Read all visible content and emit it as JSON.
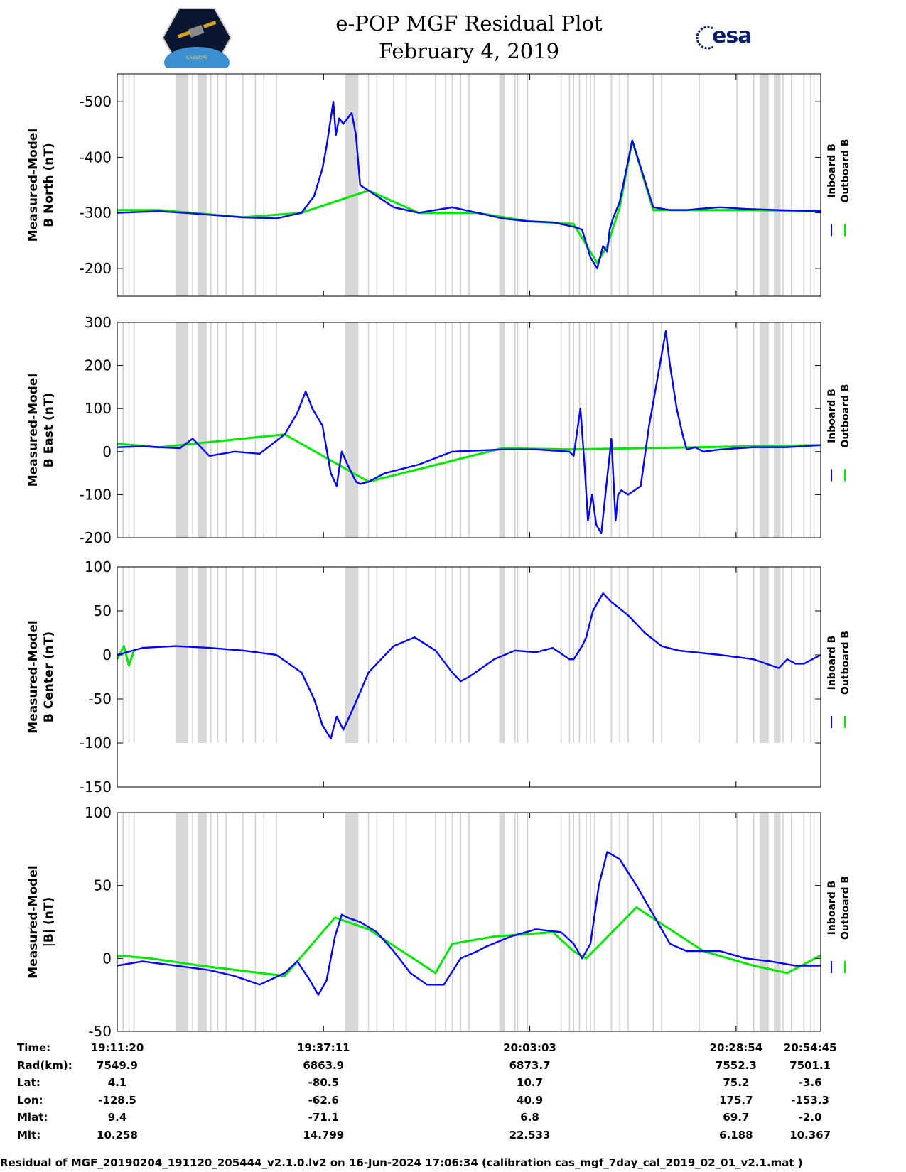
{
  "title_line1": "e-POP MGF Residual Plot",
  "title_line2": "February 4, 2019",
  "logos": {
    "esa": "esa",
    "cassiope": "CASSIOPE"
  },
  "colors": {
    "inboard": "#0000ff",
    "outboard": "#00e600",
    "gap": "#d8d8d8"
  },
  "chart_data": [
    {
      "type": "line",
      "ylabel": [
        "Measured-Model",
        "B North (nT)"
      ],
      "ylim": [
        -550,
        -150
      ],
      "yreversed": true,
      "yticks": [
        -200,
        -300,
        -400,
        -500
      ],
      "legend": [
        "Inboard B",
        "Outboard B"
      ],
      "series": [
        {
          "name": "Inboard B",
          "x": [
            0,
            50,
            80,
            150,
            190,
            220,
            235,
            245,
            250,
            255,
            258,
            261,
            265,
            270,
            275,
            280,
            285,
            290,
            300,
            330,
            360,
            380,
            400,
            430,
            460,
            490,
            520,
            545,
            555,
            565,
            573,
            580,
            585,
            588,
            592,
            600,
            615,
            640,
            660,
            680,
            700,
            720,
            750,
            790,
            840
          ],
          "y": [
            -300,
            -303,
            -300,
            -292,
            -290,
            -300,
            -330,
            -380,
            -420,
            -470,
            -500,
            -440,
            -470,
            -460,
            -470,
            -480,
            -440,
            -350,
            -340,
            -310,
            -300,
            -305,
            -310,
            -300,
            -290,
            -285,
            -283,
            -275,
            -270,
            -220,
            -200,
            -240,
            -230,
            -270,
            -290,
            -320,
            -430,
            -310,
            -305,
            -305,
            -308,
            -310,
            -307,
            -305,
            -303
          ]
        },
        {
          "name": "Outboard B",
          "x": [
            0,
            50,
            150,
            220,
            300,
            360,
            430,
            490,
            545,
            565,
            573,
            585,
            600,
            615,
            640,
            700,
            750,
            840
          ],
          "y": [
            -305,
            -305,
            -292,
            -300,
            -340,
            -300,
            -300,
            -285,
            -280,
            -230,
            -210,
            -240,
            -310,
            -430,
            -305,
            -305,
            -305,
            -303
          ]
        }
      ]
    },
    {
      "type": "line",
      "ylabel": [
        "Measured-Model",
        "B East (nT)"
      ],
      "ylim": [
        -200,
        300
      ],
      "yreversed": false,
      "yticks": [
        300,
        200,
        100,
        0,
        -100,
        -200
      ],
      "legend": [
        "Inboard B",
        "Outboard B"
      ],
      "series": [
        {
          "name": "Inboard B",
          "x": [
            0,
            30,
            75,
            90,
            110,
            140,
            170,
            200,
            215,
            225,
            233,
            245,
            255,
            262,
            268,
            275,
            280,
            285,
            290,
            300,
            320,
            360,
            400,
            460,
            500,
            540,
            545,
            553,
            558,
            562,
            567,
            572,
            578,
            585,
            590,
            595,
            598,
            602,
            610,
            625,
            635,
            645,
            655,
            660,
            668,
            675,
            680,
            690,
            700,
            720,
            760,
            800,
            840
          ],
          "y": [
            10,
            12,
            8,
            30,
            -10,
            0,
            -5,
            40,
            90,
            140,
            100,
            60,
            -50,
            -80,
            0,
            -30,
            -50,
            -70,
            -75,
            -70,
            -50,
            -30,
            0,
            5,
            5,
            0,
            -10,
            100,
            -30,
            -160,
            -100,
            -170,
            -190,
            -60,
            30,
            -160,
            -100,
            -90,
            -100,
            -80,
            60,
            170,
            280,
            200,
            100,
            40,
            5,
            10,
            0,
            5,
            10,
            10,
            15
          ]
        },
        {
          "name": "Outboard B",
          "x": [
            0,
            20,
            50,
            200,
            300,
            460,
            540,
            840
          ],
          "y": [
            18,
            15,
            10,
            40,
            -70,
            8,
            5,
            15
          ]
        }
      ]
    },
    {
      "type": "line",
      "ylabel": [
        "Measured-Model",
        "B Center (nT)"
      ],
      "ylim": [
        -150,
        100
      ],
      "yreversed": false,
      "yticks": [
        100,
        50,
        0,
        -50,
        -100,
        -150
      ],
      "legend": [
        "Inboard B",
        "Outboard B"
      ],
      "series": [
        {
          "name": "Inboard B",
          "x": [
            0,
            30,
            70,
            110,
            150,
            190,
            220,
            235,
            245,
            255,
            262,
            270,
            282,
            300,
            330,
            355,
            380,
            400,
            410,
            420,
            435,
            450,
            475,
            500,
            520,
            540,
            545,
            555,
            560,
            568,
            580,
            590,
            610,
            630,
            650,
            670,
            690,
            720,
            760,
            790,
            800,
            810,
            820,
            840
          ],
          "y": [
            0,
            8,
            10,
            8,
            5,
            0,
            -20,
            -50,
            -80,
            -95,
            -70,
            -85,
            -60,
            -20,
            10,
            20,
            5,
            -20,
            -30,
            -25,
            -15,
            -5,
            5,
            3,
            8,
            -5,
            -5,
            10,
            20,
            50,
            70,
            60,
            45,
            25,
            10,
            5,
            3,
            0,
            -5,
            -15,
            -5,
            -10,
            -10,
            0
          ]
        },
        {
          "name": "Outboard B",
          "x": [
            0,
            8,
            14,
            20
          ],
          "y": [
            -5,
            10,
            -12,
            5
          ]
        }
      ]
    },
    {
      "type": "line",
      "ylabel": [
        "Measured-Model",
        "|B| (nT)"
      ],
      "ylim": [
        -50,
        100
      ],
      "yreversed": false,
      "yticks": [
        100,
        50,
        0,
        -50
      ],
      "legend": [
        "Inboard B",
        "Outboard B"
      ],
      "series": [
        {
          "name": "Inboard B",
          "x": [
            0,
            30,
            70,
            110,
            140,
            170,
            200,
            215,
            230,
            240,
            250,
            260,
            268,
            275,
            290,
            310,
            330,
            350,
            370,
            390,
            410,
            430,
            440,
            470,
            500,
            530,
            545,
            555,
            565,
            575,
            585,
            600,
            620,
            640,
            660,
            680,
            700,
            720,
            750,
            780,
            810,
            840
          ],
          "y": [
            -5,
            -2,
            -5,
            -8,
            -12,
            -18,
            -10,
            -2,
            -15,
            -25,
            -15,
            15,
            30,
            28,
            25,
            18,
            5,
            -10,
            -18,
            -18,
            0,
            5,
            8,
            15,
            20,
            18,
            10,
            0,
            10,
            50,
            73,
            68,
            50,
            30,
            10,
            5,
            5,
            5,
            0,
            -2,
            -5,
            -5
          ]
        },
        {
          "name": "Outboard B",
          "x": [
            0,
            40,
            100,
            200,
            260,
            300,
            380,
            400,
            450,
            520,
            545,
            560,
            620,
            700,
            760,
            800,
            840
          ],
          "y": [
            2,
            0,
            -5,
            -12,
            28,
            20,
            -10,
            10,
            15,
            18,
            5,
            0,
            35,
            5,
            -5,
            -10,
            2
          ]
        }
      ]
    }
  ],
  "gap_bands": [
    [
      70,
      85
    ],
    [
      96,
      107
    ],
    [
      272,
      288
    ],
    [
      456,
      462
    ],
    [
      767,
      778
    ],
    [
      784,
      792
    ]
  ],
  "gap_lines": [
    7,
    14,
    20,
    90,
    112,
    120,
    130,
    150,
    165,
    175,
    190,
    300,
    310,
    330,
    345,
    380,
    392,
    400,
    410,
    420,
    462,
    475,
    478,
    490,
    530,
    540,
    545,
    552,
    560,
    565,
    570,
    590,
    600,
    610,
    640,
    650,
    695,
    740,
    760,
    795,
    805,
    820,
    828,
    832
  ],
  "xticks": [
    "19:11:20",
    "19:37:11",
    "20:03:03",
    "20:28:54",
    "20:54:45"
  ],
  "footer": {
    "labels": [
      "Time:",
      "Rad(km):",
      "Lat:",
      "Lon:",
      "Mlat:",
      "Mlt:"
    ],
    "columns": [
      [
        "19:11:20",
        "7549.9",
        "4.1",
        "-128.5",
        "9.4",
        "10.258"
      ],
      [
        "19:37:11",
        "6863.9",
        "-80.5",
        "-62.6",
        "-71.1",
        "14.799"
      ],
      [
        "20:03:03",
        "6873.7",
        "10.7",
        "40.9",
        "6.8",
        "22.533"
      ],
      [
        "20:28:54",
        "7552.3",
        "75.2",
        "175.7",
        "69.7",
        "6.188"
      ],
      [
        "20:54:45",
        "7501.1",
        "-3.6",
        "-153.3",
        "-2.0",
        "10.367"
      ]
    ],
    "caption": "Residual of MGF_20190204_191120_205444_v2.1.0.lv2 on 16-Jun-2024 17:06:34 (calibration cas_mgf_7day_cal_2019_02_01_v2.1.mat )"
  }
}
